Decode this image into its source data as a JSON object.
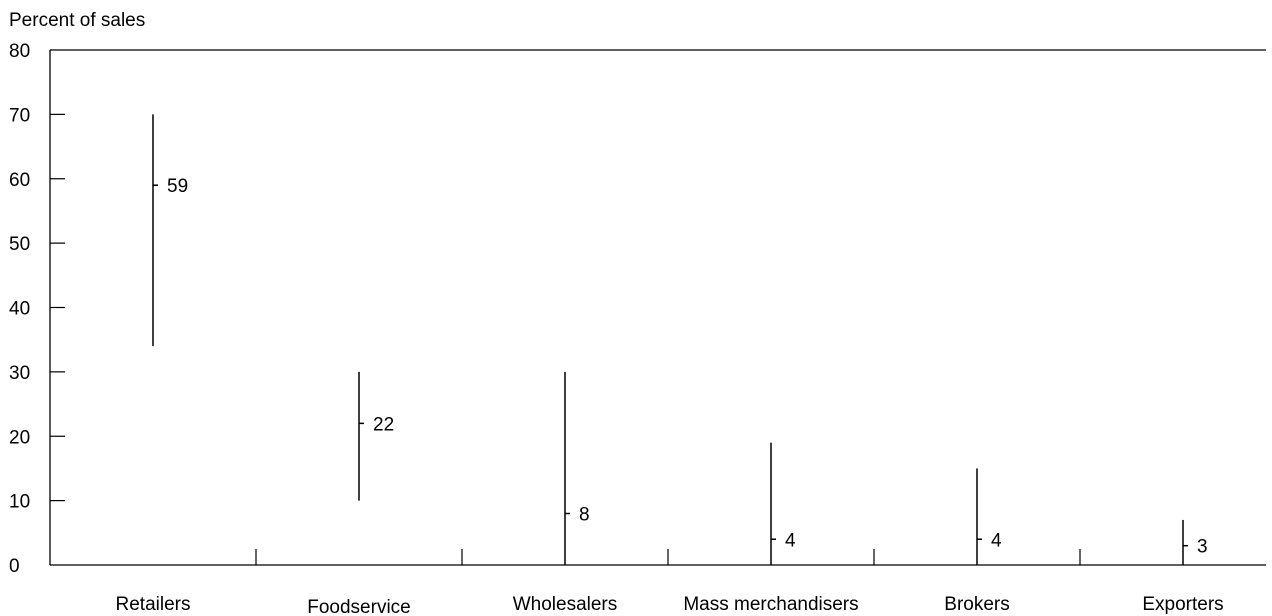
{
  "chart_data": {
    "type": "range",
    "title": "",
    "xlabel": "",
    "ylabel": "Percent of sales",
    "ylim": [
      0,
      80
    ],
    "yticks": [
      "0",
      "10",
      "20",
      "30",
      "40",
      "50",
      "60",
      "70",
      "80"
    ],
    "categories": [
      "Retailers",
      "Foodservice",
      "Wholesalers",
      "Mass merchandisers",
      "Brokers",
      "Exporters"
    ],
    "series": [
      {
        "low": [
          34,
          10,
          0,
          0,
          0,
          0
        ],
        "high": [
          70,
          30,
          30,
          19,
          15,
          7
        ],
        "mean": [
          59,
          22,
          8,
          4,
          4,
          3
        ],
        "labels": [
          "59",
          "22",
          "8",
          "4",
          "4",
          "3"
        ]
      }
    ],
    "grid": false,
    "legend": "none",
    "colors": {
      "line": "#000000",
      "text": "#000000",
      "background": "#ffffff"
    }
  }
}
